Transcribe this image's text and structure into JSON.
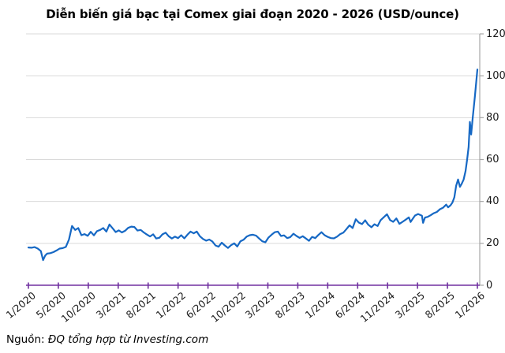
{
  "title": "Diễn biến giá bạc tại Comex giai đoạn 2020 - 2026 (USD/ounce)",
  "source": {
    "prefix": "Nguồn:",
    "text": "ĐQ tổng hợp từ Investing.com"
  },
  "chart_data": {
    "type": "line",
    "title": "Diễn biến giá bạc tại Comex giai đoạn 2020 - 2026 (USD/ounce)",
    "x_tick_labels": [
      "1/2020",
      "5/2020",
      "10/2020",
      "3/2021",
      "8/2021",
      "1/2022",
      "6/2022",
      "10/2022",
      "3/2023",
      "8/2023",
      "1/2024",
      "6/2024",
      "11/2024",
      "3/2025",
      "8/2025",
      "1/2026"
    ],
    "y_ticks": [
      0,
      20,
      40,
      60,
      80,
      100,
      120
    ],
    "ylim": [
      0,
      120
    ],
    "x_unit": "month index (0 = 1/2020, 72 = 1/2026)",
    "x_domain": [
      0,
      72
    ],
    "grid": "horizontal",
    "legend": "none",
    "colors": {
      "line": "#1668C4",
      "x_axis": "#7030A0",
      "y_axis": "#A6A6A6",
      "gridline": "#D9D9D9",
      "text": "#1A1A1A"
    },
    "series": [
      {
        "name": "Giá bạc (USD/ounce)",
        "color": "#1668C4",
        "points": [
          [
            0,
            18.0
          ],
          [
            0.5,
            17.9
          ],
          [
            1,
            18.2
          ],
          [
            1.5,
            17.5
          ],
          [
            2,
            16.3
          ],
          [
            2.35,
            12.0
          ],
          [
            2.7,
            14.2
          ],
          [
            3,
            15.1
          ],
          [
            3.5,
            15.3
          ],
          [
            4,
            15.8
          ],
          [
            4.5,
            16.6
          ],
          [
            5,
            17.5
          ],
          [
            5.5,
            17.7
          ],
          [
            6,
            18.3
          ],
          [
            6.5,
            21.8
          ],
          [
            7,
            28.3
          ],
          [
            7.5,
            26.4
          ],
          [
            8,
            27.3
          ],
          [
            8.5,
            23.9
          ],
          [
            9,
            24.4
          ],
          [
            9.5,
            23.6
          ],
          [
            10,
            25.5
          ],
          [
            10.5,
            23.8
          ],
          [
            11,
            25.8
          ],
          [
            11.5,
            26.4
          ],
          [
            12,
            27.3
          ],
          [
            12.5,
            25.6
          ],
          [
            13,
            29.0
          ],
          [
            13.5,
            27.2
          ],
          [
            14,
            25.4
          ],
          [
            14.5,
            26.2
          ],
          [
            15,
            25.2
          ],
          [
            15.5,
            26.0
          ],
          [
            16,
            27.4
          ],
          [
            16.5,
            28.0
          ],
          [
            17,
            27.8
          ],
          [
            17.5,
            26.1
          ],
          [
            18,
            26.4
          ],
          [
            18.5,
            25.2
          ],
          [
            19,
            24.2
          ],
          [
            19.5,
            23.3
          ],
          [
            20,
            24.3
          ],
          [
            20.5,
            22.3
          ],
          [
            21,
            22.7
          ],
          [
            21.5,
            24.3
          ],
          [
            22,
            25.1
          ],
          [
            22.5,
            23.4
          ],
          [
            23,
            22.3
          ],
          [
            23.5,
            23.2
          ],
          [
            24,
            22.5
          ],
          [
            24.5,
            23.9
          ],
          [
            25,
            22.4
          ],
          [
            25.5,
            24.1
          ],
          [
            26,
            25.6
          ],
          [
            26.5,
            24.8
          ],
          [
            27,
            25.6
          ],
          [
            27.5,
            23.4
          ],
          [
            28,
            22.1
          ],
          [
            28.5,
            21.3
          ],
          [
            29,
            21.8
          ],
          [
            29.5,
            20.9
          ],
          [
            30,
            19.0
          ],
          [
            30.5,
            18.4
          ],
          [
            31,
            20.3
          ],
          [
            31.5,
            19.0
          ],
          [
            32,
            17.8
          ],
          [
            32.5,
            19.1
          ],
          [
            33,
            20.0
          ],
          [
            33.5,
            18.5
          ],
          [
            34,
            21.0
          ],
          [
            34.5,
            21.7
          ],
          [
            35,
            23.2
          ],
          [
            35.5,
            23.9
          ],
          [
            36,
            24.1
          ],
          [
            36.5,
            23.7
          ],
          [
            37,
            22.3
          ],
          [
            37.5,
            21.0
          ],
          [
            38,
            20.5
          ],
          [
            38.5,
            22.8
          ],
          [
            39,
            24.1
          ],
          [
            39.5,
            25.3
          ],
          [
            40,
            25.6
          ],
          [
            40.5,
            23.5
          ],
          [
            41,
            23.8
          ],
          [
            41.5,
            22.5
          ],
          [
            42,
            23.0
          ],
          [
            42.5,
            24.6
          ],
          [
            43,
            23.5
          ],
          [
            43.5,
            22.6
          ],
          [
            44,
            23.4
          ],
          [
            44.5,
            22.3
          ],
          [
            45,
            21.2
          ],
          [
            45.5,
            23.1
          ],
          [
            46,
            22.5
          ],
          [
            46.5,
            24.0
          ],
          [
            47,
            25.3
          ],
          [
            47.5,
            23.9
          ],
          [
            48,
            23.1
          ],
          [
            48.5,
            22.5
          ],
          [
            49,
            22.4
          ],
          [
            49.5,
            23.2
          ],
          [
            50,
            24.4
          ],
          [
            50.5,
            25.1
          ],
          [
            51,
            26.8
          ],
          [
            51.5,
            28.6
          ],
          [
            52,
            27.3
          ],
          [
            52.5,
            31.5
          ],
          [
            53,
            29.9
          ],
          [
            53.5,
            29.2
          ],
          [
            54,
            31.0
          ],
          [
            54.5,
            28.9
          ],
          [
            55,
            27.7
          ],
          [
            55.5,
            29.1
          ],
          [
            56,
            28.3
          ],
          [
            56.5,
            31.1
          ],
          [
            57,
            32.5
          ],
          [
            57.5,
            33.9
          ],
          [
            58,
            31.1
          ],
          [
            58.5,
            30.3
          ],
          [
            59,
            31.9
          ],
          [
            59.5,
            29.3
          ],
          [
            60,
            30.3
          ],
          [
            60.5,
            31.3
          ],
          [
            61,
            32.4
          ],
          [
            61.3,
            30.2
          ],
          [
            61.7,
            32.0
          ],
          [
            62,
            33.3
          ],
          [
            62.5,
            34.0
          ],
          [
            63.1,
            33.2
          ],
          [
            63.3,
            29.8
          ],
          [
            63.6,
            32.3
          ],
          [
            64,
            32.6
          ],
          [
            64.5,
            33.4
          ],
          [
            65,
            34.4
          ],
          [
            65.5,
            35.0
          ],
          [
            66,
            36.3
          ],
          [
            66.5,
            37.0
          ],
          [
            67,
            38.5
          ],
          [
            67.3,
            37.2
          ],
          [
            67.7,
            38.2
          ],
          [
            68,
            39.5
          ],
          [
            68.3,
            42.0
          ],
          [
            68.6,
            47.5
          ],
          [
            68.9,
            50.5
          ],
          [
            69.2,
            47.0
          ],
          [
            69.5,
            48.5
          ],
          [
            69.8,
            50.5
          ],
          [
            70.1,
            54.5
          ],
          [
            70.35,
            60.0
          ],
          [
            70.6,
            66.0
          ],
          [
            70.8,
            78.0
          ],
          [
            71.0,
            72.0
          ],
          [
            71.25,
            80.0
          ],
          [
            71.6,
            90.0
          ],
          [
            72.0,
            103.0
          ]
        ]
      }
    ]
  }
}
